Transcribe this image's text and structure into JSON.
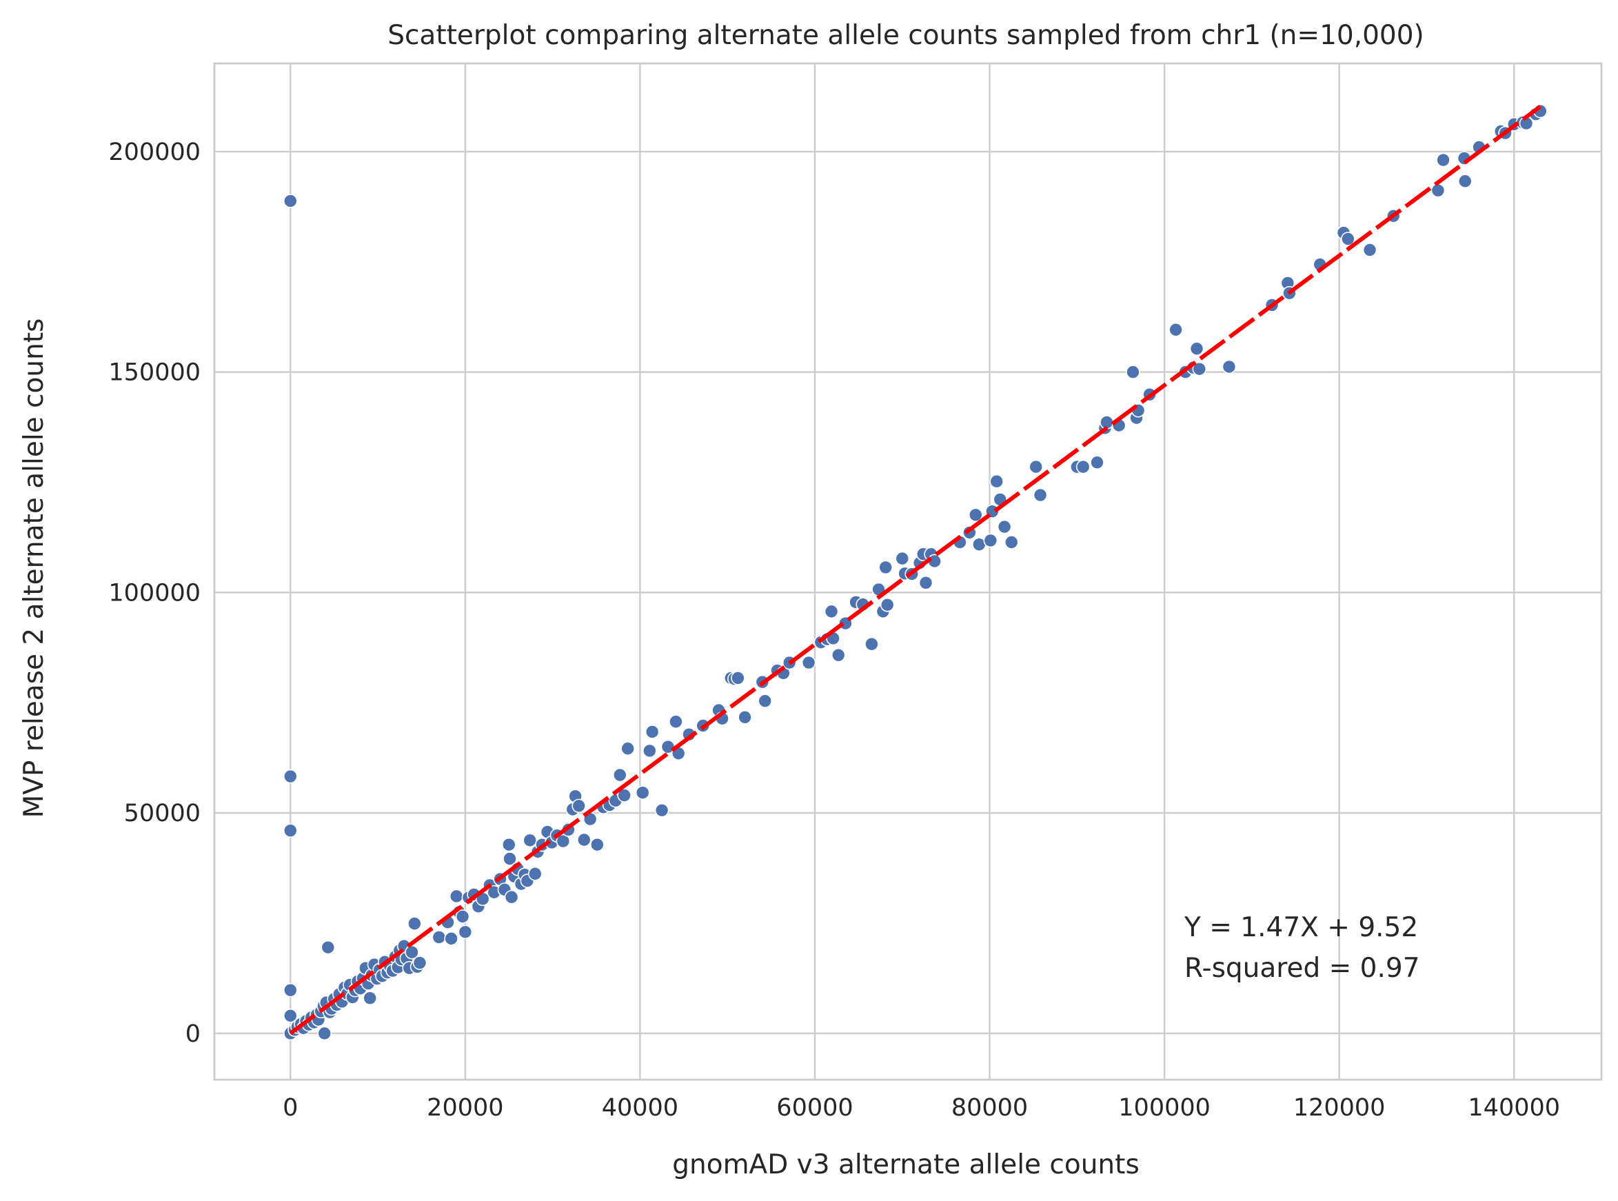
{
  "chart_data": {
    "type": "scatter",
    "title": "Scatterplot comparing alternate allele counts sampled from chr1 (n=10,000)",
    "xlabel": "gnomAD v3 alternate allele counts",
    "ylabel": "MVP release 2 alternate allele counts",
    "xlim": [
      -8700,
      150000
    ],
    "ylim": [
      -10500,
      220000
    ],
    "xticks": [
      0,
      20000,
      40000,
      60000,
      80000,
      100000,
      120000,
      140000
    ],
    "xtick_labels": [
      "0",
      "20000",
      "40000",
      "60000",
      "80000",
      "100000",
      "120000",
      "140000"
    ],
    "yticks": [
      0,
      50000,
      100000,
      150000,
      200000
    ],
    "ytick_labels": [
      "0",
      "50000",
      "100000",
      "150000",
      "200000"
    ],
    "grid": true,
    "point_color": "#4c72b0",
    "line_color": "#ff0000",
    "fit_line": {
      "slope": 1.47,
      "intercept": 9.52,
      "x_range": [
        0,
        143000
      ]
    },
    "annotations": [
      "Y = 1.47X + 9.52",
      "R-squared = 0.97"
    ],
    "points": [
      [
        0,
        0
      ],
      [
        0,
        4000
      ],
      [
        0,
        9800
      ],
      [
        0,
        46000
      ],
      [
        0,
        58300
      ],
      [
        0,
        188800
      ],
      [
        500,
        800
      ],
      [
        800,
        1500
      ],
      [
        1200,
        2100
      ],
      [
        1500,
        1200
      ],
      [
        1800,
        2800
      ],
      [
        2100,
        2000
      ],
      [
        2400,
        3600
      ],
      [
        2700,
        2500
      ],
      [
        3000,
        4200
      ],
      [
        3200,
        3100
      ],
      [
        3500,
        5000
      ],
      [
        3800,
        6200
      ],
      [
        3900,
        0
      ],
      [
        4100,
        7000
      ],
      [
        4300,
        19500
      ],
      [
        4500,
        4800
      ],
      [
        4700,
        5600
      ],
      [
        5000,
        7800
      ],
      [
        5300,
        6500
      ],
      [
        5600,
        8900
      ],
      [
        5900,
        7200
      ],
      [
        6200,
        10400
      ],
      [
        6500,
        9000
      ],
      [
        6800,
        11000
      ],
      [
        7100,
        8200
      ],
      [
        7400,
        9800
      ],
      [
        7700,
        11800
      ],
      [
        8000,
        10200
      ],
      [
        8300,
        12500
      ],
      [
        8600,
        14800
      ],
      [
        8900,
        11300
      ],
      [
        9100,
        8000
      ],
      [
        9300,
        13200
      ],
      [
        9600,
        15600
      ],
      [
        9900,
        12400
      ],
      [
        10200,
        14400
      ],
      [
        10500,
        13000
      ],
      [
        10800,
        16200
      ],
      [
        11100,
        13800
      ],
      [
        11400,
        15200
      ],
      [
        11700,
        14200
      ],
      [
        12000,
        17400
      ],
      [
        12300,
        15000
      ],
      [
        12500,
        18800
      ],
      [
        12700,
        16800
      ],
      [
        13000,
        19800
      ],
      [
        13300,
        17000
      ],
      [
        13600,
        14800
      ],
      [
        13900,
        18400
      ],
      [
        14200,
        24900
      ],
      [
        14500,
        15100
      ],
      [
        14800,
        16000
      ],
      [
        17000,
        21800
      ],
      [
        18000,
        25200
      ],
      [
        18400,
        21500
      ],
      [
        19000,
        31100
      ],
      [
        19300,
        27500
      ],
      [
        19700,
        26500
      ],
      [
        20000,
        23000
      ],
      [
        20400,
        30800
      ],
      [
        21000,
        31500
      ],
      [
        21500,
        28800
      ],
      [
        22000,
        30500
      ],
      [
        22800,
        33600
      ],
      [
        23300,
        32000
      ],
      [
        24000,
        35000
      ],
      [
        24500,
        32600
      ],
      [
        25000,
        42800
      ],
      [
        25100,
        39600
      ],
      [
        25300,
        30900
      ],
      [
        25600,
        35600
      ],
      [
        26000,
        37300
      ],
      [
        26400,
        33900
      ],
      [
        26800,
        36000
      ],
      [
        27100,
        34600
      ],
      [
        27400,
        43800
      ],
      [
        28000,
        36200
      ],
      [
        28300,
        41200
      ],
      [
        28800,
        42800
      ],
      [
        29400,
        45700
      ],
      [
        29900,
        43300
      ],
      [
        30500,
        44900
      ],
      [
        31200,
        43600
      ],
      [
        31800,
        46200
      ],
      [
        32300,
        50800
      ],
      [
        32600,
        53800
      ],
      [
        33000,
        51600
      ],
      [
        33600,
        43900
      ],
      [
        34300,
        48600
      ],
      [
        35100,
        42800
      ],
      [
        35800,
        51300
      ],
      [
        36500,
        51800
      ],
      [
        37200,
        52800
      ],
      [
        37700,
        58600
      ],
      [
        38200,
        54000
      ],
      [
        38600,
        64600
      ],
      [
        40300,
        54600
      ],
      [
        41100,
        64100
      ],
      [
        41400,
        68400
      ],
      [
        42500,
        50600
      ],
      [
        43200,
        65000
      ],
      [
        44100,
        70700
      ],
      [
        44400,
        63500
      ],
      [
        45600,
        67800
      ],
      [
        47200,
        69800
      ],
      [
        49000,
        73300
      ],
      [
        49400,
        71400
      ],
      [
        50400,
        80600
      ],
      [
        50800,
        80400
      ],
      [
        51200,
        80600
      ],
      [
        52000,
        71700
      ],
      [
        54000,
        79700
      ],
      [
        54300,
        75400
      ],
      [
        55700,
        82300
      ],
      [
        56400,
        81700
      ],
      [
        57100,
        84100
      ],
      [
        59300,
        84100
      ],
      [
        60700,
        88700
      ],
      [
        61400,
        89400
      ],
      [
        61900,
        95700
      ],
      [
        62100,
        89600
      ],
      [
        62700,
        85800
      ],
      [
        63500,
        93000
      ],
      [
        64700,
        97800
      ],
      [
        65500,
        97300
      ],
      [
        66500,
        88300
      ],
      [
        67300,
        100700
      ],
      [
        67800,
        95700
      ],
      [
        68300,
        97200
      ],
      [
        68100,
        105700
      ],
      [
        70000,
        107700
      ],
      [
        70300,
        104300
      ],
      [
        71100,
        104200
      ],
      [
        72000,
        106700
      ],
      [
        72400,
        108700
      ],
      [
        72700,
        102200
      ],
      [
        73300,
        108700
      ],
      [
        73700,
        107100
      ],
      [
        76600,
        111400
      ],
      [
        77700,
        113600
      ],
      [
        78400,
        117600
      ],
      [
        78800,
        110900
      ],
      [
        80100,
        111800
      ],
      [
        80300,
        118400
      ],
      [
        80800,
        125200
      ],
      [
        81200,
        121100
      ],
      [
        81700,
        114900
      ],
      [
        82500,
        111400
      ],
      [
        85300,
        128500
      ],
      [
        85800,
        122100
      ],
      [
        90000,
        128500
      ],
      [
        90700,
        128500
      ],
      [
        92300,
        129500
      ],
      [
        93200,
        137300
      ],
      [
        93400,
        138600
      ],
      [
        94800,
        137900
      ],
      [
        96400,
        150000
      ],
      [
        96800,
        139600
      ],
      [
        97000,
        141300
      ],
      [
        98300,
        144900
      ],
      [
        101300,
        159600
      ],
      [
        102400,
        150000
      ],
      [
        103300,
        151000
      ],
      [
        103700,
        155300
      ],
      [
        104000,
        150700
      ],
      [
        107400,
        151200
      ],
      [
        112300,
        165200
      ],
      [
        114100,
        170200
      ],
      [
        114300,
        167900
      ],
      [
        117800,
        174400
      ],
      [
        120500,
        181600
      ],
      [
        121000,
        180200
      ],
      [
        123500,
        177700
      ],
      [
        126200,
        185400
      ],
      [
        131300,
        191200
      ],
      [
        131900,
        198100
      ],
      [
        134300,
        198500
      ],
      [
        134400,
        193300
      ],
      [
        136000,
        201000
      ],
      [
        138500,
        204600
      ],
      [
        139000,
        204200
      ],
      [
        140000,
        206200
      ],
      [
        141000,
        206600
      ],
      [
        141400,
        206400
      ],
      [
        142500,
        208500
      ],
      [
        143000,
        209200
      ]
    ]
  }
}
